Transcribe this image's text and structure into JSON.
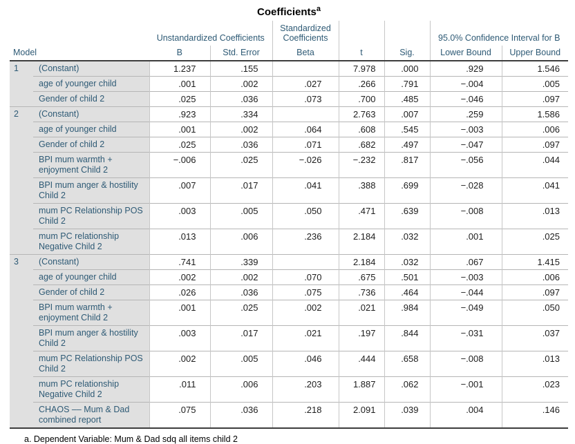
{
  "title": {
    "text": "Coefficients",
    "superscript": "a"
  },
  "header": {
    "model": "Model",
    "groups": {
      "unstandardized": "Unstandardized Coefficients",
      "standardized": "Standardized Coefficients",
      "confidence": "95.0% Confidence Interval for B"
    },
    "columns": {
      "b": "B",
      "std_error": "Std. Error",
      "beta": "Beta",
      "t": "t",
      "sig": "Sig.",
      "lower": "Lower Bound",
      "upper": "Upper Bound"
    }
  },
  "rows": [
    {
      "model": "1",
      "label": "(Constant)",
      "b": "1.237",
      "se": ".155",
      "beta": "",
      "t": "7.978",
      "sig": ".000",
      "lower": ".929",
      "upper": "1.546"
    },
    {
      "model": "",
      "label": "age of younger child",
      "b": ".001",
      "se": ".002",
      "beta": ".027",
      "t": ".266",
      "sig": ".791",
      "lower": "−.004",
      "upper": ".005"
    },
    {
      "model": "",
      "label": "Gender of child 2",
      "b": ".025",
      "se": ".036",
      "beta": ".073",
      "t": ".700",
      "sig": ".485",
      "lower": "−.046",
      "upper": ".097"
    },
    {
      "model": "2",
      "label": "(Constant)",
      "b": ".923",
      "se": ".334",
      "beta": "",
      "t": "2.763",
      "sig": ".007",
      "lower": ".259",
      "upper": "1.586"
    },
    {
      "model": "",
      "label": "age of younger child",
      "b": ".001",
      "se": ".002",
      "beta": ".064",
      "t": ".608",
      "sig": ".545",
      "lower": "−.003",
      "upper": ".006"
    },
    {
      "model": "",
      "label": "Gender of child 2",
      "b": ".025",
      "se": ".036",
      "beta": ".071",
      "t": ".682",
      "sig": ".497",
      "lower": "−.047",
      "upper": ".097"
    },
    {
      "model": "",
      "label": "BPI mum warmth + enjoyment Child 2",
      "b": "−.006",
      "se": ".025",
      "beta": "−.026",
      "t": "−.232",
      "sig": ".817",
      "lower": "−.056",
      "upper": ".044"
    },
    {
      "model": "",
      "label": "BPI mum anger & hostility Child 2",
      "b": ".007",
      "se": ".017",
      "beta": ".041",
      "t": ".388",
      "sig": ".699",
      "lower": "−.028",
      "upper": ".041"
    },
    {
      "model": "",
      "label": "mum PC Relationship POS Child 2",
      "b": ".003",
      "se": ".005",
      "beta": ".050",
      "t": ".471",
      "sig": ".639",
      "lower": "−.008",
      "upper": ".013"
    },
    {
      "model": "",
      "label": "mum PC relationship Negative Child 2",
      "b": ".013",
      "se": ".006",
      "beta": ".236",
      "t": "2.184",
      "sig": ".032",
      "lower": ".001",
      "upper": ".025"
    },
    {
      "model": "3",
      "label": "(Constant)",
      "b": ".741",
      "se": ".339",
      "beta": "",
      "t": "2.184",
      "sig": ".032",
      "lower": ".067",
      "upper": "1.415"
    },
    {
      "model": "",
      "label": "age of younger child",
      "b": ".002",
      "se": ".002",
      "beta": ".070",
      "t": ".675",
      "sig": ".501",
      "lower": "−.003",
      "upper": ".006"
    },
    {
      "model": "",
      "label": "Gender of child 2",
      "b": ".026",
      "se": ".036",
      "beta": ".075",
      "t": ".736",
      "sig": ".464",
      "lower": "−.044",
      "upper": ".097"
    },
    {
      "model": "",
      "label": "BPI mum warmth + enjoyment Child 2",
      "b": ".001",
      "se": ".025",
      "beta": ".002",
      "t": ".021",
      "sig": ".984",
      "lower": "−.049",
      "upper": ".050"
    },
    {
      "model": "",
      "label": "BPI mum anger & hostility Child 2",
      "b": ".003",
      "se": ".017",
      "beta": ".021",
      "t": ".197",
      "sig": ".844",
      "lower": "−.031",
      "upper": ".037"
    },
    {
      "model": "",
      "label": "mum PC Relationship POS Child 2",
      "b": ".002",
      "se": ".005",
      "beta": ".046",
      "t": ".444",
      "sig": ".658",
      "lower": "−.008",
      "upper": ".013"
    },
    {
      "model": "",
      "label": "mum PC relationship Negative Child 2",
      "b": ".011",
      "se": ".006",
      "beta": ".203",
      "t": "1.887",
      "sig": ".062",
      "lower": "−.001",
      "upper": ".023"
    },
    {
      "model": "",
      "label": "CHAOS –– Mum & Dad combined report",
      "b": ".075",
      "se": ".036",
      "beta": ".218",
      "t": "2.091",
      "sig": ".039",
      "lower": ".004",
      "upper": ".146"
    }
  ],
  "footnote": "a. Dependent Variable: Mum & Dad sdq all items child 2",
  "colors": {
    "header_text": "#2e5a75",
    "number_text": "#1c1c1c",
    "stub_background": "#e0e0e0",
    "heavy_rule": "#3c3c3c",
    "grid_line": "#b5b5b5"
  }
}
